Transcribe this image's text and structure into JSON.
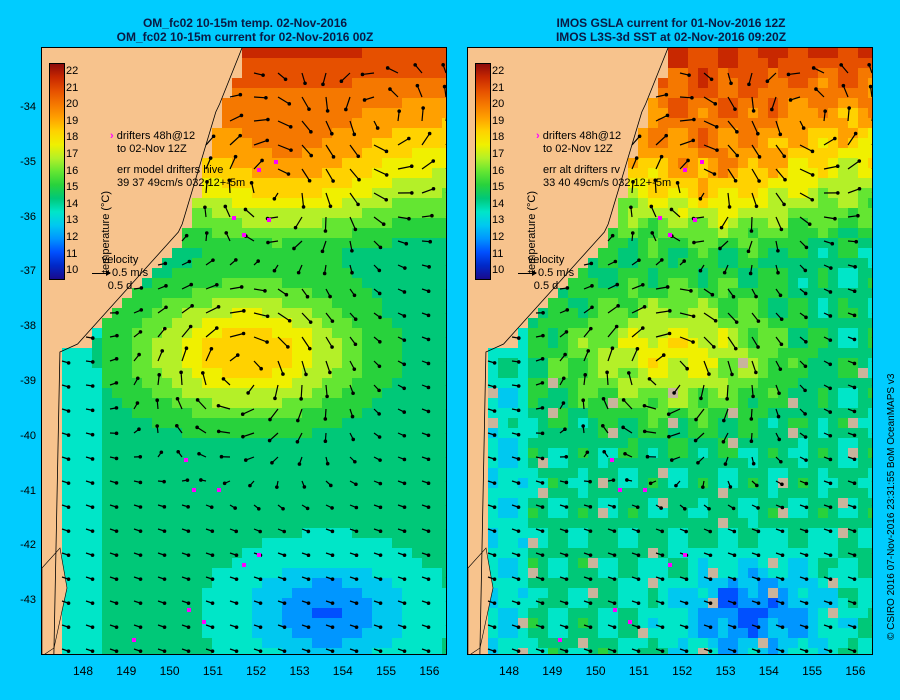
{
  "panels": [
    {
      "title_line1": "OM_fc02 10-15m temp. 02-Nov-2016",
      "title_line2": "OM_fc02 10-15m current for 02-Nov-2016 00Z",
      "colorbar_label": "temperature (°C)",
      "annotation": {
        "line1": "drifters 48h@12",
        "line2": "to 02-Nov 12Z",
        "line3": "err model drifters hive",
        "line4": "39 37 49cm/s 032 12+-5m"
      },
      "velocity": {
        "title": "velocity",
        "speed": "0.5 m/s",
        "duration": "0.5 d"
      }
    },
    {
      "title_line1": "IMOS GSLA current for 01-Nov-2016 12Z",
      "title_line2": "IMOS L3S-3d SST at 02-Nov-2016 09:20Z",
      "colorbar_label": "temperature (°C)",
      "annotation": {
        "line1": "drifters 48h@12",
        "line2": "to 02-Nov 12Z",
        "line3": "err alt drifters rv",
        "line4": "33 40 49cm/s 032 12+-5m"
      },
      "velocity": {
        "title": "velocity",
        "speed": "0.5 m/s",
        "duration": "0.5 d"
      }
    }
  ],
  "colorbar_ticks": [
    "22",
    "21",
    "20",
    "19",
    "18",
    "17",
    "16",
    "15",
    "14",
    "13",
    "12",
    "11",
    "10"
  ],
  "lat_ticks": [
    "-34",
    "-35",
    "-36",
    "-37",
    "-38",
    "-39",
    "-40",
    "-41",
    "-42",
    "-43"
  ],
  "lon_ticks": [
    "148",
    "149",
    "150",
    "151",
    "152",
    "153",
    "154",
    "155",
    "156"
  ],
  "credit": "© CSIRO 2016   07-Nov-2016 23:31:55 BoM OceanMAPS v3",
  "colors": {
    "background": "#00ccff",
    "land": "#f7c38d",
    "drifter": "#ff00ff",
    "missing": "#c8b49c"
  }
}
